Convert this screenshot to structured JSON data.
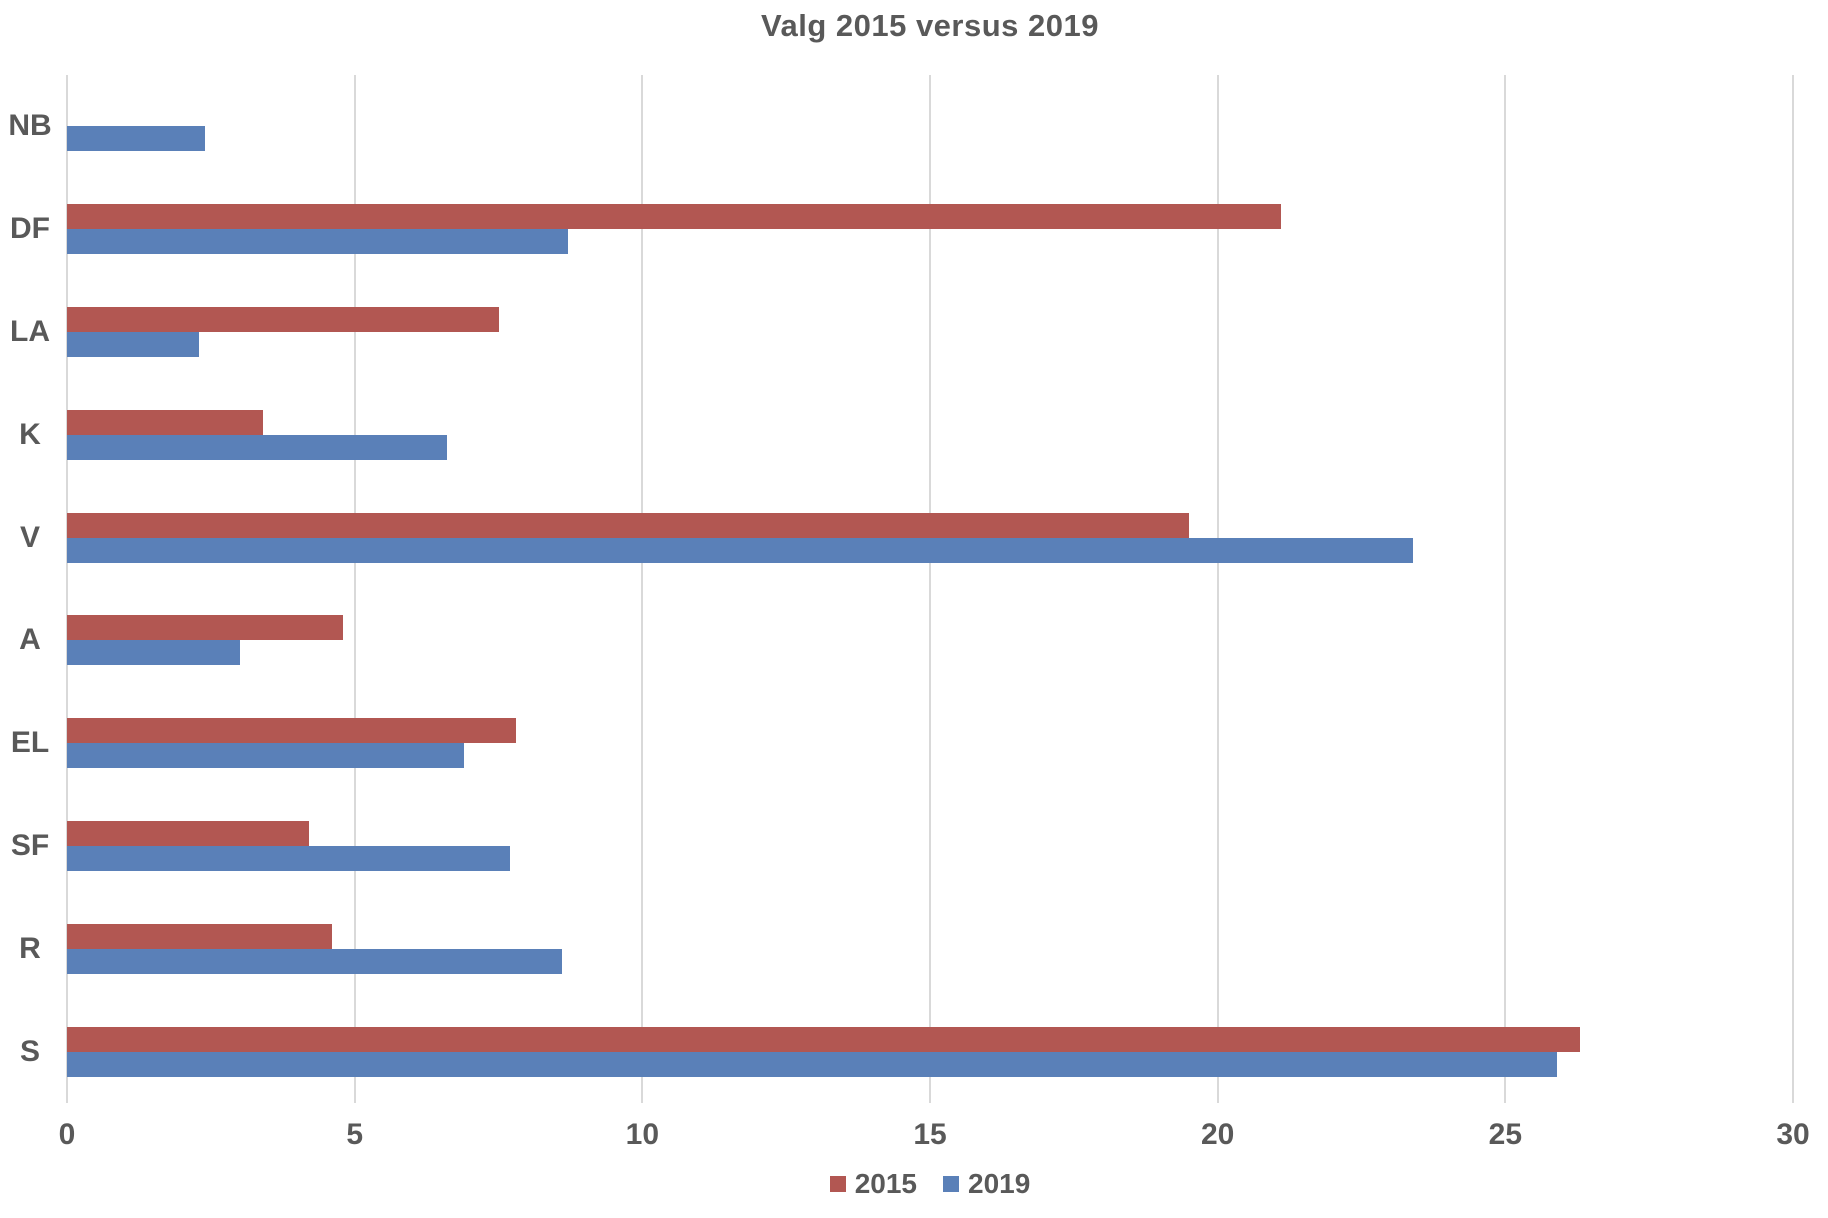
{
  "chart_data": {
    "type": "bar",
    "orientation": "horizontal",
    "title": "Valg 2015 versus 2019",
    "categories": [
      "NB",
      "DF",
      "LA",
      "K",
      "V",
      "A",
      "EL",
      "SF",
      "R",
      "S"
    ],
    "series": [
      {
        "name": "2015",
        "color": "#B25752",
        "values": [
          null,
          21.1,
          7.5,
          3.4,
          19.5,
          4.8,
          7.8,
          4.2,
          4.6,
          26.3
        ]
      },
      {
        "name": "2019",
        "color": "#5A80B8",
        "values": [
          2.4,
          8.7,
          2.3,
          6.6,
          23.4,
          3.0,
          6.9,
          7.7,
          8.6,
          25.9
        ]
      }
    ],
    "xlim": [
      0,
      30
    ],
    "x_ticks": [
      0,
      5,
      10,
      15,
      20,
      25,
      30
    ],
    "ylabel": "",
    "xlabel": "",
    "grid": "vertical-only",
    "legend_position": "bottom-center",
    "colors": {
      "text": "#595959",
      "gridline": "#D9D9D9",
      "background": "#FFFFFF"
    }
  }
}
